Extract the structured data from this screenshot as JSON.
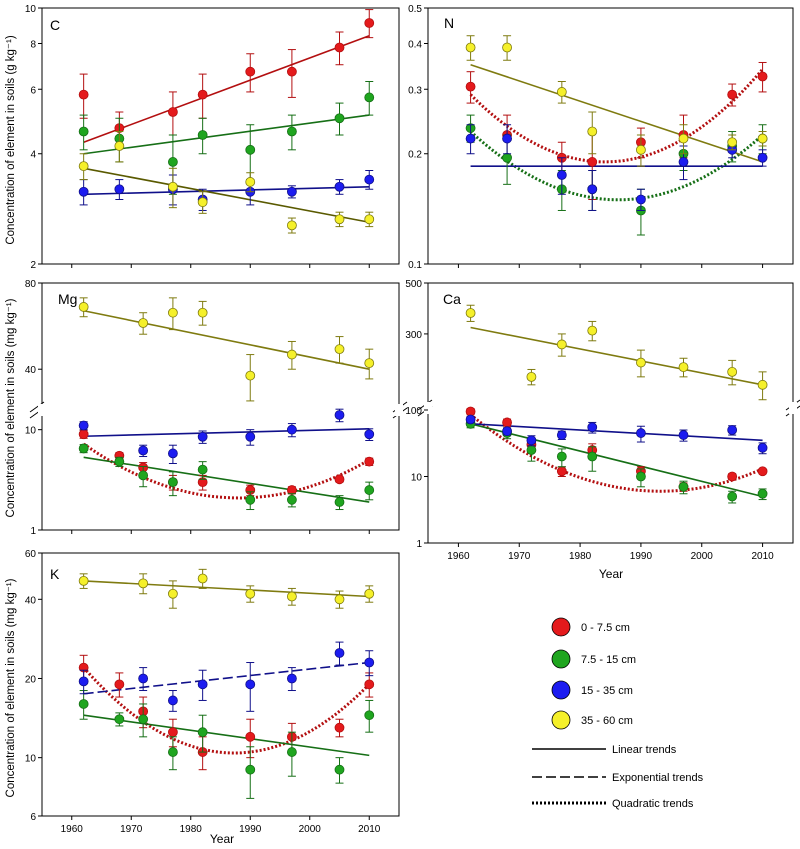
{
  "figure": {
    "ylabel_top": "Concentration of element in soils (g kg⁻¹)",
    "ylabel_mid": "Concentration of element in soils (mg kg⁻¹)",
    "ylabel_bottom": "Concentration of element in soils (mg kg⁻¹)",
    "xlabel": "Year"
  },
  "legend": {
    "items": [
      {
        "label": "0 - 7.5 cm",
        "color": "#e41a1c"
      },
      {
        "label": "7.5 - 15 cm",
        "color": "#1fa51f"
      },
      {
        "label": "15 - 35 cm",
        "color": "#1c1cf0"
      },
      {
        "label": "35 - 60 cm",
        "color": "#f5f02a"
      }
    ],
    "trends": [
      {
        "label": "Linear trends",
        "style": "solid"
      },
      {
        "label": "Exponential trends",
        "style": "dashed"
      },
      {
        "label": "Quadratic trends",
        "style": "dotted"
      }
    ]
  },
  "chart_data": [
    {
      "panel": "C",
      "type": "scatter",
      "yscale": "log",
      "ylim": [
        2,
        10
      ],
      "xlim": [
        1955,
        2015
      ],
      "yticks": [
        "2",
        "4",
        "6",
        "8",
        "10"
      ],
      "show_x_ticklabels": false,
      "x": [
        1962,
        1968,
        1977,
        1982,
        1990,
        1997,
        2005,
        2010
      ],
      "series": [
        {
          "color": "#e41a1c",
          "values": [
            5.8,
            4.7,
            5.2,
            5.8,
            6.7,
            6.7,
            7.8,
            9.1
          ],
          "errors": [
            0.8,
            0.5,
            0.7,
            0.8,
            0.8,
            1.0,
            0.8,
            0.8
          ],
          "trend": {
            "kind": "linear",
            "from": 4.3,
            "to": 8.4
          }
        },
        {
          "color": "#1fa51f",
          "values": [
            4.6,
            4.4,
            3.8,
            4.5,
            4.1,
            4.6,
            5.0,
            5.7
          ],
          "errors": [
            0.5,
            0.6,
            0.7,
            0.5,
            0.7,
            0.5,
            0.5,
            0.6
          ],
          "trend": {
            "kind": "linear",
            "from": 4.0,
            "to": 5.1
          }
        },
        {
          "color": "#1c1cf0",
          "values": [
            3.15,
            3.2,
            3.2,
            3.0,
            3.15,
            3.15,
            3.25,
            3.4
          ],
          "errors": [
            0.25,
            0.2,
            0.3,
            0.2,
            0.25,
            0.12,
            0.15,
            0.2
          ],
          "trend": {
            "kind": "linear",
            "from": 3.1,
            "to": 3.25
          }
        },
        {
          "color": "#f5f02a",
          "values": [
            3.7,
            4.2,
            3.25,
            2.95,
            3.35,
            2.55,
            2.65,
            2.65
          ],
          "errors": [
            0.3,
            0.4,
            0.4,
            0.2,
            0.2,
            0.12,
            0.12,
            0.12
          ],
          "trend": {
            "kind": "linear",
            "from": 3.65,
            "to": 2.6
          },
          "trend_color": "#5a5a00"
        }
      ]
    },
    {
      "panel": "N",
      "type": "scatter",
      "yscale": "log",
      "ylim": [
        0.1,
        0.5
      ],
      "xlim": [
        1955,
        2015
      ],
      "yticks": [
        "0.1",
        "0.2",
        "0.3",
        "0.4",
        "0.5"
      ],
      "show_x_ticklabels": false,
      "x": [
        1962,
        1968,
        1977,
        1982,
        1990,
        1997,
        2005,
        2010
      ],
      "series": [
        {
          "color": "#e41a1c",
          "values": [
            0.305,
            0.225,
            0.195,
            0.19,
            0.215,
            0.225,
            0.29,
            0.325
          ],
          "errors": [
            0.03,
            0.03,
            0.02,
            0.04,
            0.02,
            0.03,
            0.02,
            0.03
          ],
          "trend": {
            "kind": "quadratic",
            "from": 0.29,
            "mid": 0.19,
            "to": 0.34,
            "min_year": 1984
          }
        },
        {
          "color": "#1fa51f",
          "values": [
            0.235,
            0.195,
            0.16,
            0.16,
            0.14,
            0.2,
            0.21,
            0.22
          ],
          "errors": [
            0.02,
            0.03,
            0.02,
            0.02,
            0.02,
            0.02,
            0.02,
            0.02
          ],
          "trend": {
            "kind": "quadratic",
            "from": 0.23,
            "mid": 0.15,
            "to": 0.225,
            "min_year": 1988
          }
        },
        {
          "color": "#1c1cf0",
          "values": [
            0.22,
            0.22,
            0.175,
            0.16,
            0.15,
            0.19,
            0.205,
            0.195
          ],
          "errors": [
            0.02,
            0.02,
            0.02,
            0.02,
            0.01,
            0.02,
            0.01,
            0.01
          ],
          "trend": {
            "kind": "linear",
            "from": 0.185,
            "to": 0.185
          }
        },
        {
          "color": "#f5f02a",
          "values": [
            0.39,
            0.39,
            0.295,
            0.23,
            0.205,
            0.22,
            0.215,
            0.22
          ],
          "errors": [
            0.03,
            0.03,
            0.02,
            0.03,
            0.02,
            0.02,
            0.01,
            0.01
          ],
          "trend": {
            "kind": "linear",
            "from": 0.35,
            "to": 0.19
          }
        }
      ]
    },
    {
      "panel": "Mg",
      "type": "scatter",
      "yscale": "broken-log",
      "upper": {
        "ylim": [
          30,
          80
        ],
        "yticks": [
          "40",
          "80"
        ]
      },
      "lower": {
        "ylim": [
          1,
          15
        ],
        "yticks": [
          "1",
          "10"
        ]
      },
      "xlim": [
        1955,
        2015
      ],
      "show_x_ticklabels": false,
      "x": [
        1962,
        1968,
        1972,
        1977,
        1982,
        1990,
        1997,
        2005,
        2010
      ],
      "series": [
        {
          "color": "#e41a1c",
          "values": [
            9.0,
            5.5,
            4.2,
            3.0,
            3.0,
            2.5,
            2.5,
            3.2,
            4.8
          ],
          "errors": [
            0.8,
            0.4,
            0.5,
            0.5,
            0.5,
            0.3,
            0.2,
            0.2,
            0.4
          ],
          "trend": {
            "kind": "quadratic",
            "from": 7.2,
            "mid": 2.1,
            "to": 5.0,
            "min_year": 1990
          }
        },
        {
          "color": "#1fa51f",
          "values": [
            6.5,
            4.8,
            3.5,
            3.0,
            4.0,
            2.0,
            2.0,
            1.9,
            2.5
          ],
          "errors": [
            0.6,
            0.5,
            0.8,
            0.8,
            0.8,
            0.4,
            0.3,
            0.3,
            0.5
          ],
          "trend": {
            "kind": "linear",
            "from": 5.3,
            "to": 1.9
          }
        },
        {
          "color": "#1c1cf0",
          "values": [
            11,
            null,
            6.2,
            5.8,
            8.5,
            8.5,
            10,
            14,
            9
          ],
          "errors": [
            1.0,
            null,
            0.8,
            1.2,
            1.2,
            1.5,
            1.5,
            2.0,
            1.2
          ],
          "trend": {
            "kind": "linear",
            "from": 8.6,
            "to": 10.2
          }
        },
        {
          "color": "#f5f02a",
          "values": [
            66,
            null,
            58,
            63,
            63,
            38,
            45,
            47,
            42
          ],
          "errors": [
            5,
            null,
            5,
            8,
            6,
            7,
            5,
            5,
            5
          ],
          "trend": {
            "kind": "linear",
            "from": 64,
            "to": 40
          }
        }
      ]
    },
    {
      "panel": "Ca",
      "type": "scatter",
      "yscale": "broken-log",
      "upper": {
        "ylim": [
          150,
          500
        ],
        "yticks": [
          "300",
          "500"
        ]
      },
      "lower": {
        "ylim": [
          1,
          100
        ],
        "yticks": [
          "1",
          "10",
          "100"
        ]
      },
      "xlim": [
        1955,
        2015
      ],
      "xticks": [
        1960,
        1970,
        1980,
        1990,
        2000,
        2010
      ],
      "x": [
        1962,
        1968,
        1972,
        1977,
        1982,
        1990,
        1997,
        2005,
        2010
      ],
      "series": [
        {
          "color": "#e41a1c",
          "values": [
            95,
            65,
            30,
            12,
            25,
            12,
            7,
            10,
            12
          ],
          "errors": [
            10,
            8,
            5,
            2,
            6,
            2,
            1,
            1,
            1
          ],
          "trend": {
            "kind": "quadratic",
            "from": 85,
            "mid": 6,
            "to": 13,
            "min_year": 1993
          }
        },
        {
          "color": "#1fa51f",
          "values": [
            62,
            45,
            25,
            20,
            20,
            10,
            7,
            5,
            5.5
          ],
          "errors": [
            8,
            8,
            8,
            6,
            8,
            3,
            1.5,
            1,
            1
          ],
          "trend": {
            "kind": "linear",
            "from": 62,
            "to": 5
          }
        },
        {
          "color": "#1c1cf0",
          "values": [
            72,
            48,
            35,
            42,
            55,
            45,
            42,
            50,
            27
          ],
          "errors": [
            8,
            6,
            6,
            6,
            10,
            12,
            8,
            8,
            5
          ],
          "trend": {
            "kind": "linear",
            "from": 62,
            "to": 35
          }
        },
        {
          "color": "#f5f02a",
          "values": [
            370,
            null,
            195,
            270,
            310,
            225,
            215,
            205,
            180
          ],
          "errors": [
            30,
            null,
            15,
            30,
            30,
            30,
            20,
            25,
            25
          ],
          "trend": {
            "kind": "linear",
            "from": 320,
            "to": 180
          }
        }
      ]
    },
    {
      "panel": "K",
      "type": "scatter",
      "yscale": "log",
      "ylim": [
        6,
        60
      ],
      "xlim": [
        1955,
        2015
      ],
      "yticks": [
        "6",
        "10",
        "20",
        "40",
        "60"
      ],
      "xticks": [
        1960,
        1970,
        1980,
        1990,
        2000,
        2010
      ],
      "x": [
        1962,
        1968,
        1972,
        1977,
        1982,
        1990,
        1997,
        2005,
        2010
      ],
      "series": [
        {
          "color": "#e41a1c",
          "values": [
            22,
            19,
            15,
            12.5,
            10.5,
            12,
            12,
            13,
            19
          ],
          "errors": [
            2.5,
            2,
            2,
            1.5,
            1.5,
            2,
            1.5,
            1,
            2
          ],
          "trend": {
            "kind": "quadratic",
            "from": 22,
            "mid": 10.5,
            "to": 19,
            "min_year": 1990
          }
        },
        {
          "color": "#1fa51f",
          "values": [
            16,
            14,
            14,
            10.5,
            12.5,
            9,
            10.5,
            9,
            14.5
          ],
          "errors": [
            2,
            0.8,
            2,
            1.5,
            2,
            2,
            2,
            1,
            2
          ],
          "trend": {
            "kind": "linear",
            "from": 14.5,
            "to": 10.2
          }
        },
        {
          "color": "#1c1cf0",
          "values": [
            19.5,
            null,
            20,
            16.5,
            19,
            19,
            20,
            25,
            23
          ],
          "errors": [
            2,
            null,
            2,
            1.5,
            2.5,
            4,
            2,
            2.5,
            2.5
          ],
          "trend": {
            "kind": "exponential",
            "from": 17.5,
            "to": 23
          }
        },
        {
          "color": "#f5f02a",
          "values": [
            47,
            null,
            46,
            42,
            48,
            42,
            41,
            40,
            42
          ],
          "errors": [
            3,
            null,
            4,
            5,
            4,
            3,
            3,
            3,
            3
          ],
          "trend": {
            "kind": "linear",
            "from": 47,
            "to": 41
          }
        }
      ]
    }
  ]
}
